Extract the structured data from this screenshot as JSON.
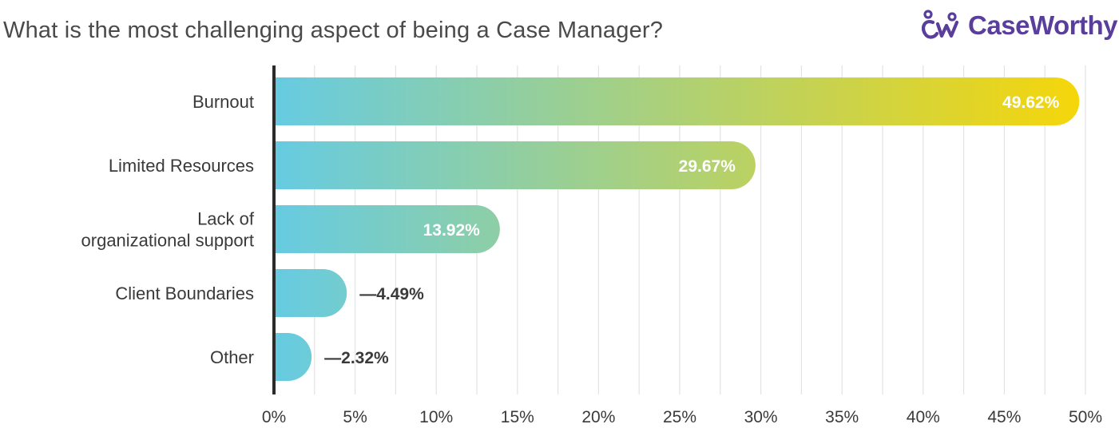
{
  "header": {
    "brand_name": "CaseWorthy",
    "brand_icon": "cw-people-logo-icon",
    "brand_color": "#5a3e9b"
  },
  "colors": {
    "gradient_start": "#66cbe2",
    "gradient_end": "#f5d60a",
    "axis": "#2b2b2b",
    "grid": "#e3e3e3",
    "text": "#3a3a3a"
  },
  "chart_data": {
    "type": "bar",
    "orientation": "horizontal",
    "title": "What is the most challenging aspect of being a Case Manager?",
    "categories": [
      "Burnout",
      "Limited Resources",
      "Lack of organizational support",
      "Client Boundaries",
      "Other"
    ],
    "category_lines": [
      [
        "Burnout"
      ],
      [
        "Limited Resources"
      ],
      [
        "Lack of",
        "organizational support"
      ],
      [
        "Client Boundaries"
      ],
      [
        "Other"
      ]
    ],
    "values": [
      49.62,
      29.67,
      13.92,
      4.49,
      2.32
    ],
    "data_labels": [
      "49.62%",
      "29.67%",
      "13.92%",
      "—4.49%",
      "—2.32%"
    ],
    "label_inside": [
      true,
      true,
      true,
      false,
      false
    ],
    "xlim": [
      0,
      50
    ],
    "xticks": [
      0,
      5,
      10,
      15,
      20,
      25,
      30,
      35,
      40,
      45,
      50
    ],
    "xtick_labels": [
      "0%",
      "5%",
      "10%",
      "15%",
      "20%",
      "25%",
      "30%",
      "35%",
      "40%",
      "45%",
      "50%"
    ],
    "minor_grid_step": 2.5,
    "grid": true,
    "xlabel": "",
    "ylabel": ""
  }
}
